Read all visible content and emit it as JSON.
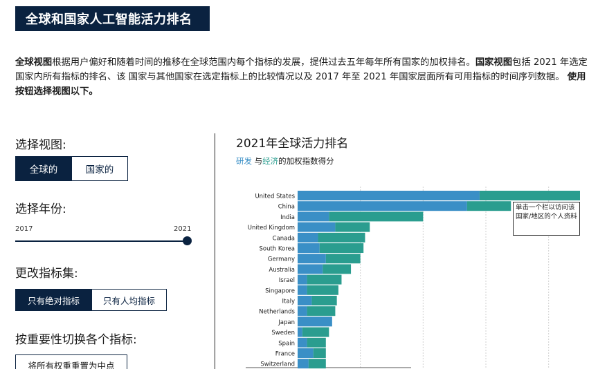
{
  "header": {
    "title": "全球和国家人工智能活力排名"
  },
  "intro": {
    "p1_bold": "全球视图",
    "p1": "根据用户偏好和随着时间的推移在全球范围内每个指标的发展，提供过去五年每年所有国家的加权排名。",
    "p2_bold": "国家视图",
    "p2": "包括 2021 年选定国家内所有指标的排名、该 国家与其他国家在选定指标上的比较情况以及 2017 年至 2021 年国家层面所有可用指标的时间序列数据。",
    "p3_bold": "使用按钮选择视图以下。"
  },
  "controls": {
    "view_label": "选择视图:",
    "view_options": [
      "全球的",
      "国家的"
    ],
    "year_label": "选择年份:",
    "year_min": "2017",
    "year_max": "2021",
    "year_value": 2021,
    "indicator_label": "更改指标集:",
    "indicator_options": [
      "只有绝对指标",
      "只有人均指标"
    ],
    "toggle_label": "按重要性切换各个指标:",
    "reset_label": "将所有权重重置为中点"
  },
  "chart": {
    "title": "2021年全球活力排名",
    "subtitle_rd": "研发",
    "subtitle_mid": " 与",
    "subtitle_ec": "经济",
    "subtitle_end": "的加权指数得分",
    "tooltip": "单击一个栏以访问该国家/地区的个人资料"
  },
  "colors": {
    "rd": "#3a8fc6",
    "ec": "#2a9d8f",
    "navy": "#0a2240"
  },
  "chart_data": {
    "type": "bar",
    "orientation": "horizontal",
    "stacked": true,
    "categories": [
      "United States",
      "China",
      "India",
      "United Kingdom",
      "Canada",
      "South Korea",
      "Germany",
      "Australia",
      "Israel",
      "Singapore",
      "Italy",
      "Netherlands",
      "Japan",
      "Sweden",
      "Spain",
      "France",
      "Switzerland"
    ],
    "series": [
      {
        "name": "研发",
        "values": [
          58,
          54,
          10,
          12,
          6.5,
          7,
          9,
          8,
          3,
          3,
          4.5,
          3,
          11,
          1.5,
          3,
          5,
          3.5
        ]
      },
      {
        "name": "经济",
        "values": [
          32,
          14,
          30,
          11,
          15,
          14,
          11,
          9,
          11,
          10,
          8,
          9,
          0,
          8.5,
          6,
          4,
          5.5
        ]
      }
    ],
    "xlim": [
      0,
      90
    ],
    "grid": true
  }
}
